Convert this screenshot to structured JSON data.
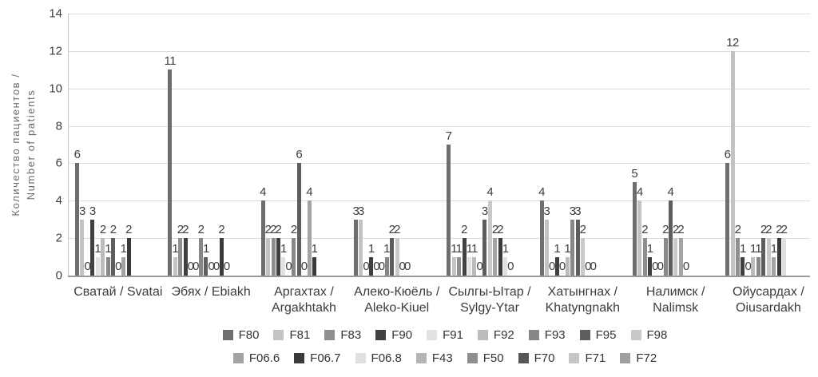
{
  "chart_data": {
    "type": "bar",
    "title": "",
    "ylabel_line1": "Количество пациентов /",
    "ylabel_line2": "Number of patients",
    "xlabel": "",
    "ylim": [
      0,
      14
    ],
    "yticks": [
      "0",
      "2",
      "4",
      "6",
      "8",
      "10",
      "12",
      "14"
    ],
    "grid": true,
    "legend_position": "bottom",
    "colors": {
      "grid": "#dcdcdc",
      "axis": "#9a9a9a",
      "y_axis_line": "#c4c4c4",
      "label_text": "#3d3d3d",
      "y_title_text": "#6b6b6b"
    },
    "series_names": [
      "F80",
      "F81",
      "F83",
      "F90",
      "F91",
      "F92",
      "F93",
      "F95",
      "F98",
      "F06.6",
      "F06.7",
      "F06.8",
      "F43",
      "F50",
      "F70",
      "F71",
      "F72"
    ],
    "series_colors": [
      "#6e6e6e",
      "#c3c3c3",
      "#8f8f8f",
      "#404040",
      "#e2e2e2",
      "#bcbcbc",
      "#878787",
      "#5e5e5e",
      "#c9c9c9",
      "#a3a3a3",
      "#3a3a3a",
      "#e0e0e0",
      "#b5b5b5",
      "#8e8e8e",
      "#575757",
      "#c6c6c6",
      "#9f9f9f"
    ],
    "legend_rows": [
      [
        "F80",
        "F81",
        "F83",
        "F90",
        "F91",
        "F92",
        "F93",
        "F95",
        "F98"
      ],
      [
        "F06.6",
        "F06.7",
        "F06.8",
        "F43",
        "F50",
        "F70",
        "F71",
        "F72"
      ]
    ],
    "groups": [
      {
        "label_lines": [
          "Сватай / Svatai"
        ],
        "values": [
          6,
          3,
          0,
          3,
          1,
          2,
          1,
          2,
          0,
          1,
          2
        ]
      },
      {
        "label_lines": [
          "Эбях / Ebiakh"
        ],
        "values": [
          11,
          1,
          2,
          2,
          0,
          0,
          2,
          1,
          0,
          0,
          2,
          0
        ]
      },
      {
        "label_lines": [
          "Аргахтах /",
          "Argakhtakh"
        ],
        "values": [
          4,
          2,
          2,
          2,
          1,
          0,
          2,
          6,
          0,
          4,
          1
        ]
      },
      {
        "label_lines": [
          "Алеко-Кюёль /",
          "Aleko-Kiuel"
        ],
        "values": [
          3,
          3,
          0,
          1,
          0,
          0,
          1,
          2,
          2,
          0,
          0
        ]
      },
      {
        "label_lines": [
          "Сылгы-Ытар /",
          "Sylgy-Ytar"
        ],
        "values": [
          7,
          1,
          1,
          2,
          1,
          1,
          0,
          3,
          4,
          2,
          2,
          1,
          0
        ]
      },
      {
        "label_lines": [
          "Хатынгнах /",
          "Khatyngnakh"
        ],
        "values": [
          4,
          3,
          0,
          1,
          0,
          1,
          3,
          3,
          2,
          0,
          0
        ]
      },
      {
        "label_lines": [
          "Налимск /",
          "Nalimsk"
        ],
        "values": [
          5,
          4,
          2,
          1,
          0,
          0,
          2,
          4,
          2,
          2,
          0
        ]
      },
      {
        "label_lines": [
          "Ойусардах /",
          "Oiusardakh"
        ],
        "values": [
          6,
          12,
          2,
          1,
          0,
          1,
          1,
          2,
          2,
          1,
          2,
          2
        ]
      }
    ]
  }
}
